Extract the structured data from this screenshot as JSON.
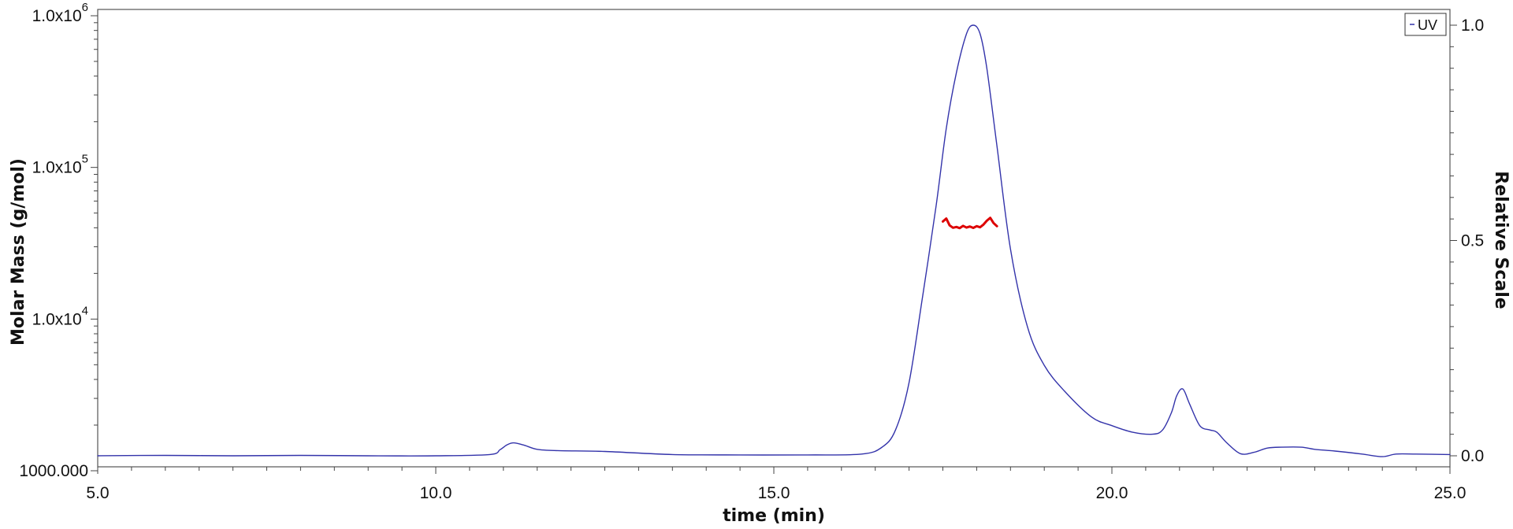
{
  "chart_data": {
    "type": "line",
    "xlabel": "time (min)",
    "ylabel_left": "Molar Mass (g/mol)",
    "ylabel_right": "Relative Scale",
    "xlim": [
      5.0,
      25.0
    ],
    "ylim_left": [
      1000,
      1000000
    ],
    "y_left_scale": "log",
    "ylim_right": [
      0.0,
      1.0
    ],
    "x_ticks": [
      "5.0",
      "10.0",
      "15.0",
      "20.0",
      "25.0"
    ],
    "y_left_ticks": [
      {
        "value": 1000000,
        "base": "1.0x10",
        "exp": "6"
      },
      {
        "value": 100000,
        "base": "1.0x10",
        "exp": "5"
      },
      {
        "value": 10000,
        "base": "1.0x10",
        "exp": "4"
      },
      {
        "value": 1000,
        "base": "1000.000",
        "exp": ""
      }
    ],
    "y_right_ticks": [
      "1.0",
      "0.5",
      "0.0"
    ],
    "legend": [
      {
        "label": "UV",
        "color": "#3333aa"
      }
    ],
    "legend_position": "top-right",
    "grid": false,
    "series": [
      {
        "name": "UV",
        "axis": "right",
        "color": "#3333aa",
        "x": [
          5.0,
          6.0,
          7.0,
          8.0,
          9.0,
          10.0,
          10.8,
          10.95,
          11.05,
          11.15,
          11.3,
          11.5,
          11.8,
          12.5,
          13.5,
          14.5,
          15.5,
          16.3,
          16.6,
          16.8,
          17.0,
          17.2,
          17.4,
          17.55,
          17.7,
          17.85,
          17.95,
          18.05,
          18.15,
          18.3,
          18.5,
          18.75,
          19.0,
          19.3,
          19.7,
          20.0,
          20.3,
          20.6,
          20.75,
          20.88,
          20.96,
          21.05,
          21.15,
          21.3,
          21.45,
          21.55,
          21.7,
          21.9,
          22.1,
          22.3,
          22.5,
          22.8,
          23.0,
          23.3,
          23.7,
          24.0,
          24.2,
          24.5,
          25.0
        ],
        "y": [
          0.0,
          0.001,
          0.0,
          0.001,
          0.0,
          0.0,
          0.003,
          0.014,
          0.025,
          0.03,
          0.025,
          0.015,
          0.012,
          0.01,
          0.003,
          0.002,
          0.002,
          0.004,
          0.02,
          0.06,
          0.17,
          0.37,
          0.58,
          0.76,
          0.89,
          0.98,
          1.0,
          0.98,
          0.9,
          0.72,
          0.48,
          0.3,
          0.21,
          0.15,
          0.09,
          0.07,
          0.055,
          0.05,
          0.06,
          0.1,
          0.14,
          0.155,
          0.12,
          0.07,
          0.06,
          0.055,
          0.03,
          0.005,
          0.008,
          0.018,
          0.02,
          0.02,
          0.015,
          0.011,
          0.004,
          -0.002,
          0.004,
          0.004,
          0.003
        ]
      },
      {
        "name": "Molar Mass",
        "axis": "left",
        "color": "#dd0000",
        "x": [
          17.5,
          17.55,
          17.6,
          17.65,
          17.7,
          17.75,
          17.8,
          17.85,
          17.9,
          17.95,
          18.0,
          18.05,
          18.1,
          18.15,
          18.2,
          18.25,
          18.3
        ],
        "y": [
          44000,
          46000,
          41500,
          40000,
          40500,
          39800,
          41200,
          40100,
          40800,
          39900,
          41000,
          40300,
          42000,
          44500,
          46500,
          43000,
          41000
        ]
      }
    ]
  }
}
